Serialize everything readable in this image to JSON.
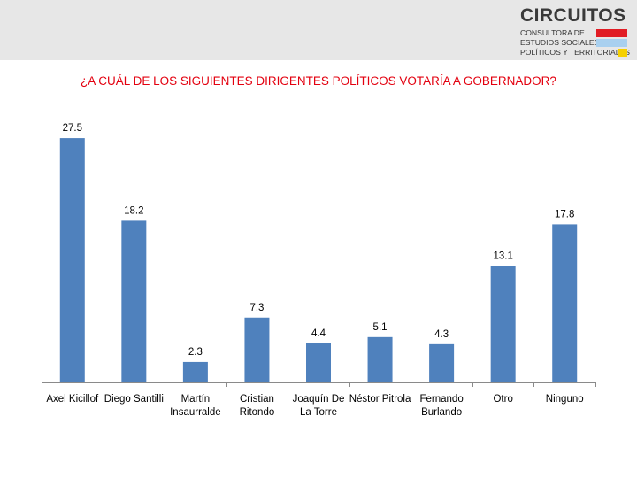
{
  "logo": {
    "name": "CIRCUITOS",
    "line1": "CONSULTORA DE",
    "line2": "ESTUDIOS SOCIALES,",
    "line3": "POLÍTICOS Y TERRITORIALES"
  },
  "colors": {
    "bar": "#4f81bd",
    "title": "#e3000f",
    "header_band": "#e7e7e7"
  },
  "chart_data": {
    "type": "bar",
    "title": "¿A CUÁL DE LOS SIGUIENTES DIRIGENTES POLÍTICOS VOTARÍA A GOBERNADOR?",
    "categories": [
      [
        "Axel Kicillof"
      ],
      [
        "Diego Santilli"
      ],
      [
        "Martín",
        "Insaurralde"
      ],
      [
        "Cristian",
        "Ritondo"
      ],
      [
        "Joaquín De",
        "La Torre"
      ],
      [
        "Néstor Pitrola"
      ],
      [
        "Fernando",
        "Burlando"
      ],
      [
        "Otro"
      ],
      [
        "Ninguno"
      ]
    ],
    "values": [
      27.5,
      18.2,
      2.3,
      7.3,
      4.4,
      5.1,
      4.3,
      13.1,
      17.8
    ],
    "value_labels": [
      "27.5",
      "18.2",
      "2.3",
      "7.3",
      "4.4",
      "5.1",
      "4.3",
      "13.1",
      "17.8"
    ],
    "ylim": [
      0,
      30
    ],
    "grid": false,
    "legend": false
  }
}
